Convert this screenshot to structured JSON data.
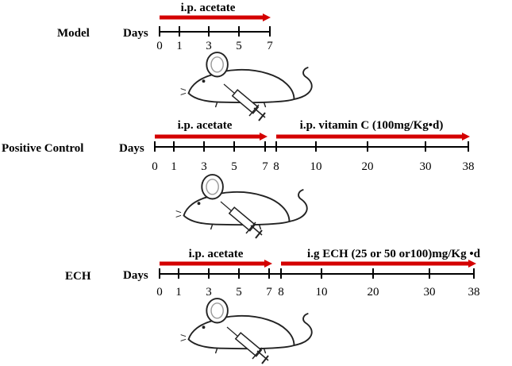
{
  "colors": {
    "arrow": "#d40000",
    "line": "#000000"
  },
  "groups": [
    {
      "label": "Model",
      "axis_title": "Days",
      "ticks": [
        {
          "text": "0"
        },
        {
          "text": "1"
        },
        {
          "text": "3"
        },
        {
          "text": "5"
        },
        {
          "text": "7"
        }
      ],
      "phases": [
        {
          "text": "i.p. acetate"
        }
      ],
      "icons": [
        "mouse-icon",
        "syringe-icon"
      ]
    },
    {
      "label": "Positive Control",
      "axis_title": "Days",
      "ticks": [
        {
          "text": "0"
        },
        {
          "text": "1"
        },
        {
          "text": "3"
        },
        {
          "text": "5"
        },
        {
          "text": "7"
        },
        {
          "text": "8"
        },
        {
          "text": "10"
        },
        {
          "text": "20"
        },
        {
          "text": "30"
        },
        {
          "text": "38"
        }
      ],
      "phases": [
        {
          "text": "i.p. acetate"
        },
        {
          "text": "i.p. vitamin C (100mg/Kg•d)"
        }
      ],
      "icons": [
        "mouse-icon",
        "syringe-icon"
      ]
    },
    {
      "label": "ECH",
      "axis_title": "Days",
      "ticks": [
        {
          "text": "0"
        },
        {
          "text": "1"
        },
        {
          "text": "3"
        },
        {
          "text": "5"
        },
        {
          "text": "7"
        },
        {
          "text": "8"
        },
        {
          "text": "10"
        },
        {
          "text": "20"
        },
        {
          "text": "30"
        },
        {
          "text": "38"
        }
      ],
      "phases": [
        {
          "text": "i.p. acetate"
        },
        {
          "text": "i.g ECH (25 or 50 or100)mg/Kg •d"
        }
      ],
      "icons": [
        "mouse-icon",
        "syringe-icon"
      ]
    }
  ]
}
